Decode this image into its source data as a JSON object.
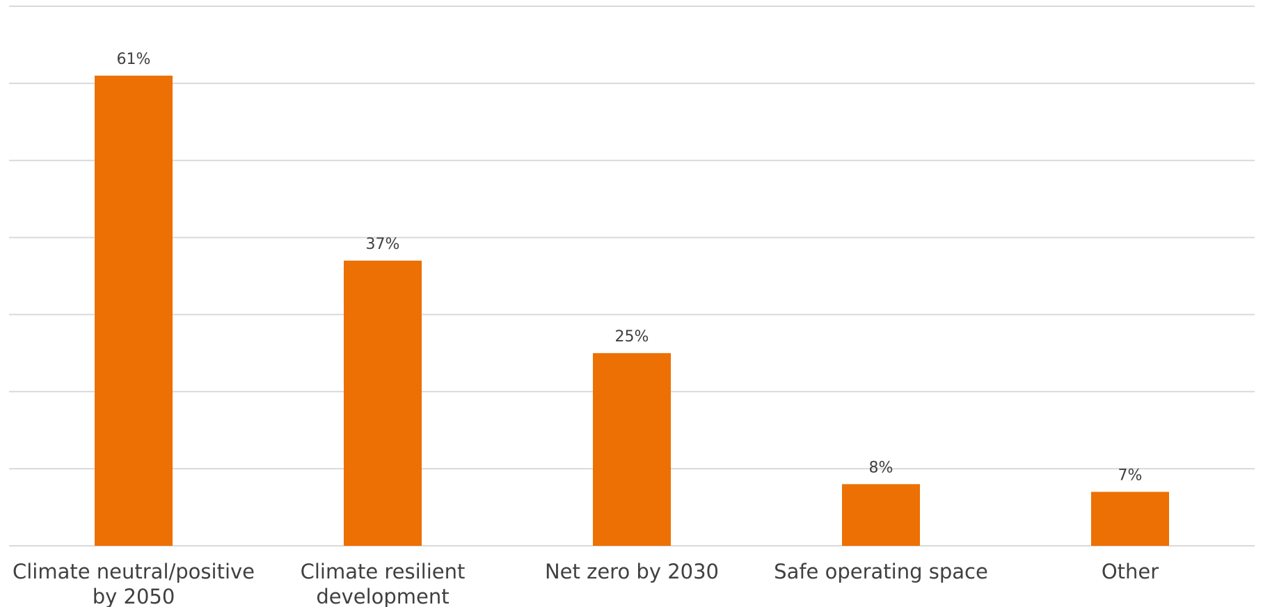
{
  "chart_data": {
    "type": "bar",
    "categories": [
      [
        "Climate neutral/positive",
        "by 2050"
      ],
      [
        "Climate resilient",
        "development"
      ],
      [
        "Net zero by 2030"
      ],
      [
        "Safe operating space"
      ],
      [
        "Other"
      ]
    ],
    "values": [
      61,
      37,
      25,
      8,
      7
    ],
    "value_labels": [
      "61%",
      "37%",
      "25%",
      "8%",
      "7%"
    ],
    "unit": "%",
    "ylim": [
      0,
      70
    ],
    "gridline_step": 10,
    "grid": true,
    "bar_color": "#ec7004",
    "grid_color": "#d9d9d9",
    "text_color": "#404040",
    "title": "",
    "xlabel": "",
    "ylabel": ""
  }
}
